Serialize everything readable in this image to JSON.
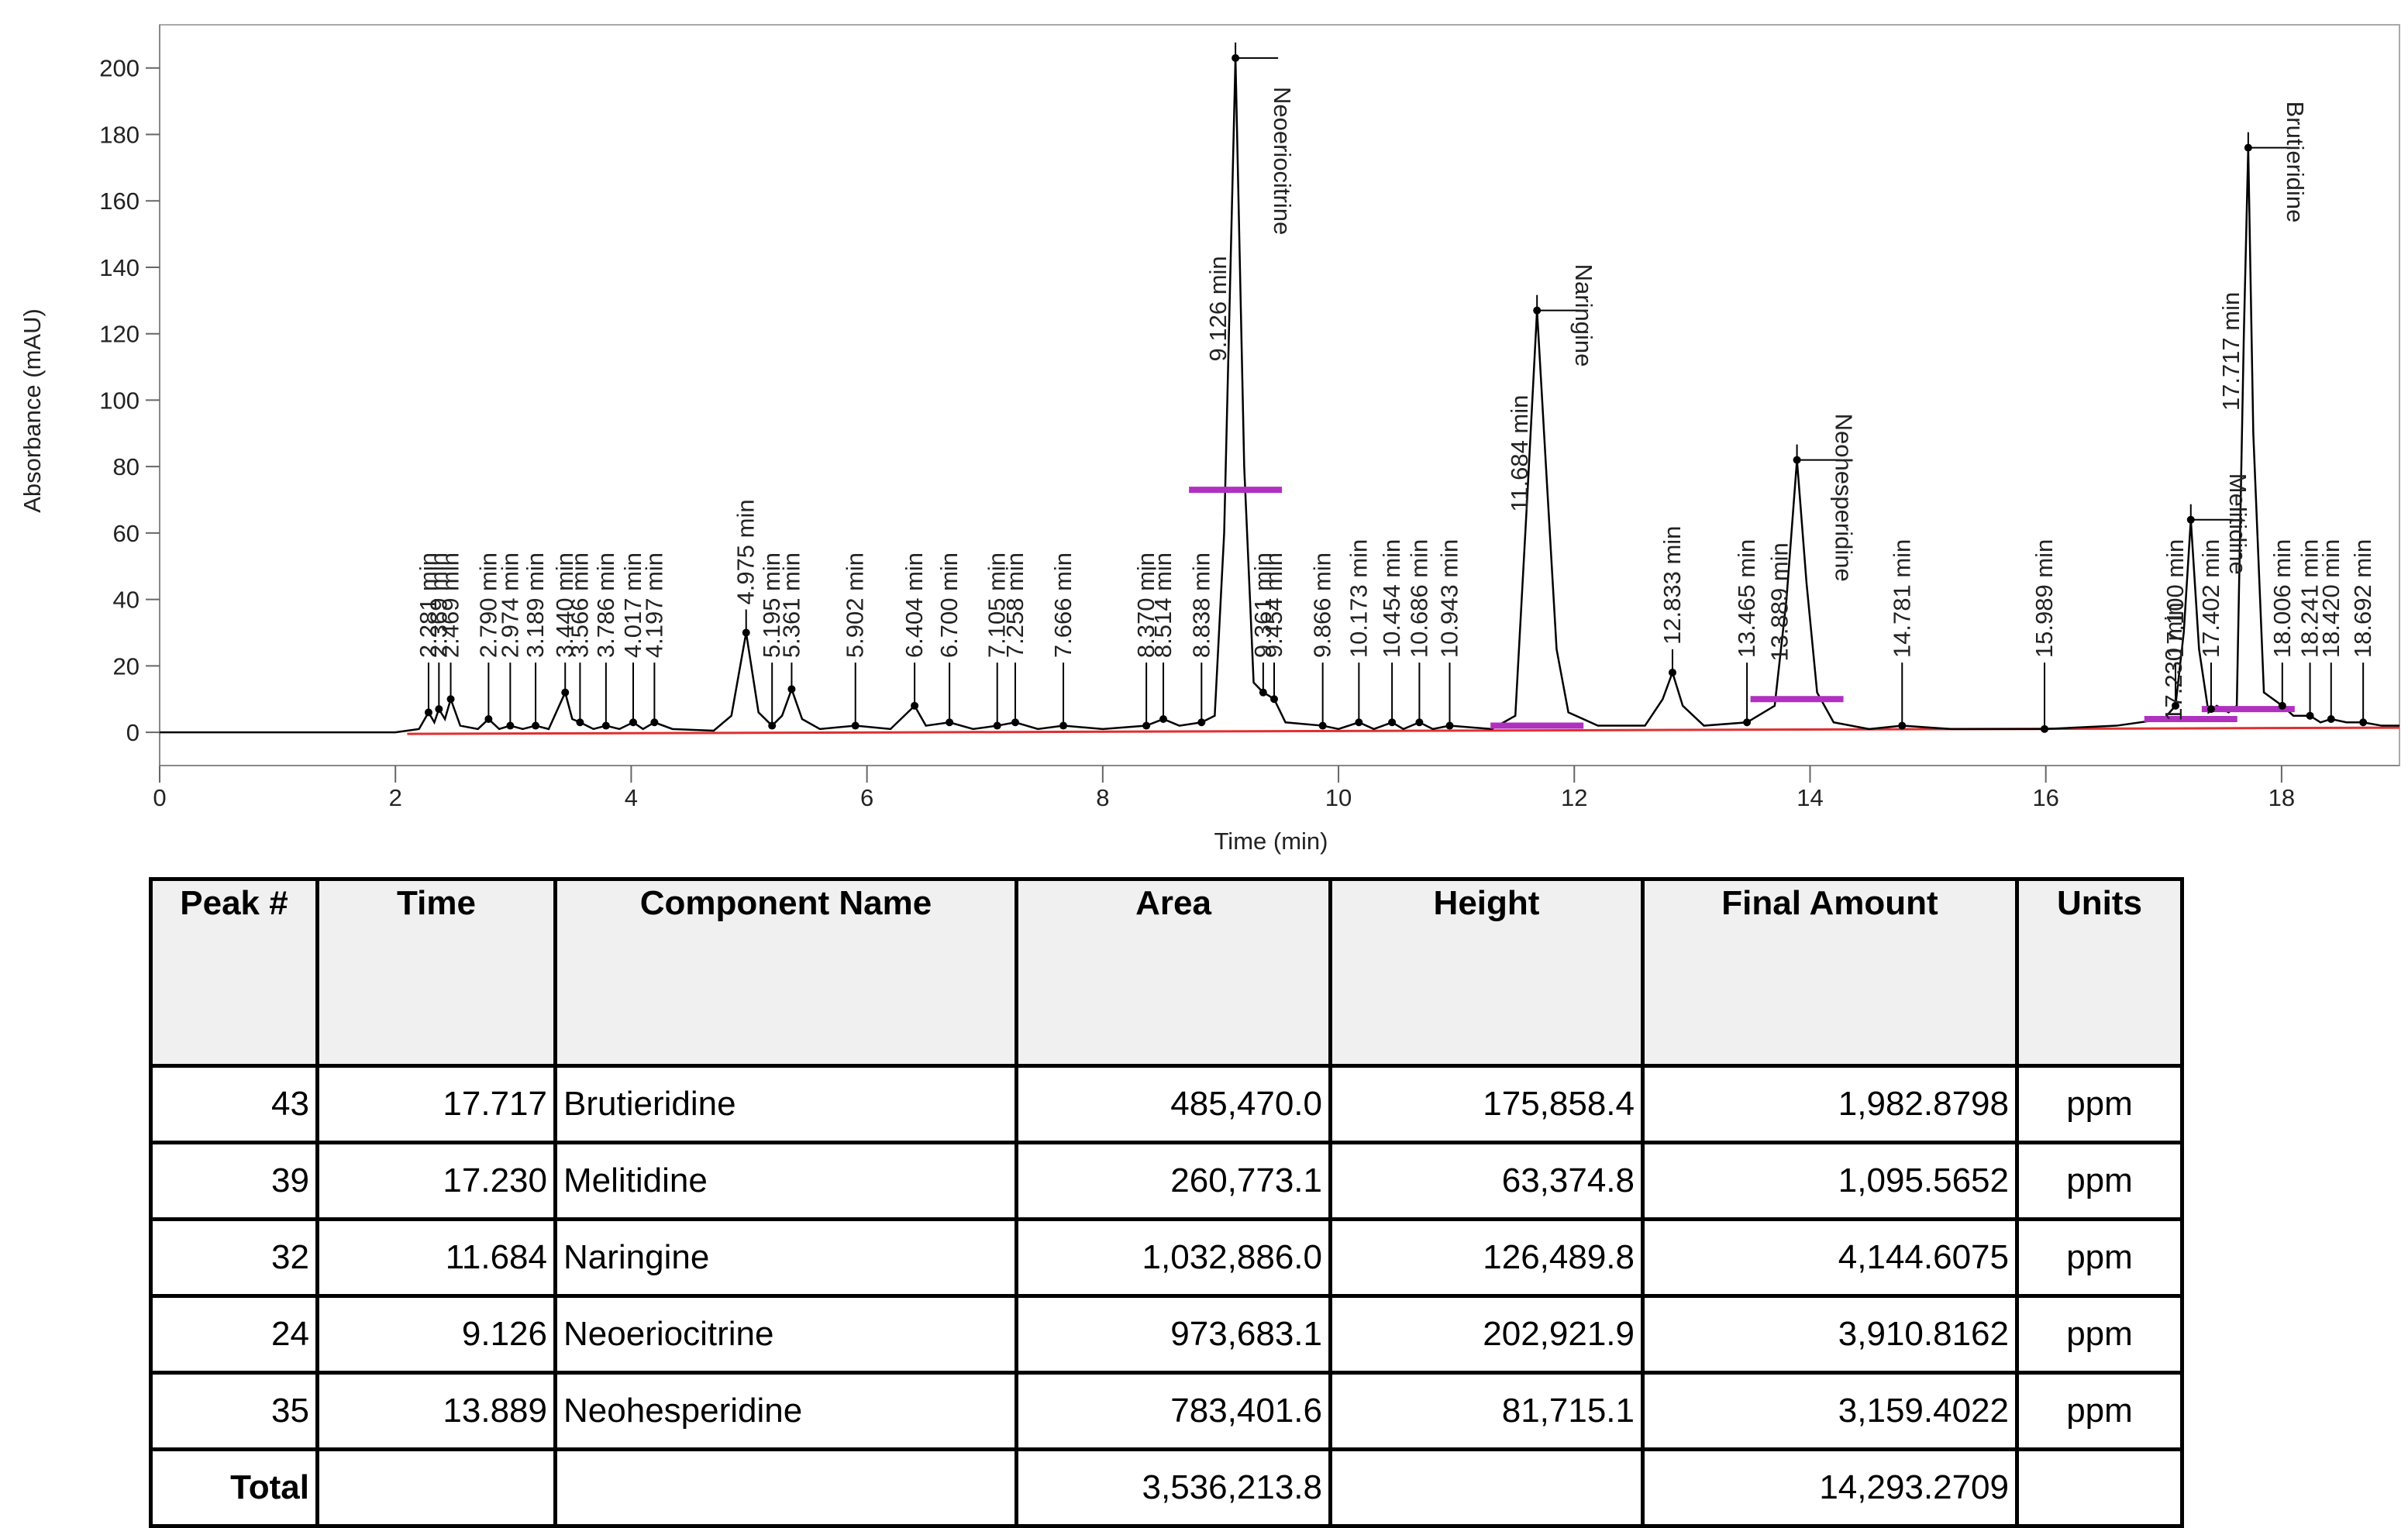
{
  "chart_data": {
    "type": "line",
    "y_label": "Absorbance (mAU)",
    "x_label": "Time (min)",
    "xlim": [
      0,
      19
    ],
    "ylim": [
      -10,
      213
    ],
    "xticks": [
      0,
      2,
      4,
      6,
      8,
      10,
      12,
      14,
      16,
      18
    ],
    "yticks": [
      0,
      20,
      40,
      60,
      80,
      100,
      120,
      140,
      160,
      180,
      200
    ],
    "series": [
      {
        "color": "#000000",
        "x": [
          0,
          2.0,
          2.2,
          2.281,
          2.33,
          2.369,
          2.42,
          2.469,
          2.55,
          2.7,
          2.79,
          2.88,
          2.974,
          3.08,
          3.189,
          3.3,
          3.44,
          3.5,
          3.566,
          3.68,
          3.786,
          3.9,
          4.017,
          4.1,
          4.197,
          4.35,
          4.7,
          4.85,
          4.975,
          5.08,
          5.195,
          5.28,
          5.361,
          5.45,
          5.6,
          5.902,
          6.2,
          6.404,
          6.5,
          6.7,
          6.9,
          7.105,
          7.258,
          7.45,
          7.666,
          8.0,
          8.37,
          8.514,
          8.65,
          8.838,
          8.95,
          9.03,
          9.126,
          9.2,
          9.28,
          9.361,
          9.41,
          9.454,
          9.55,
          9.866,
          10.0,
          10.173,
          10.3,
          10.454,
          10.55,
          10.686,
          10.8,
          10.943,
          11.3,
          11.5,
          11.6,
          11.684,
          11.76,
          11.85,
          11.95,
          12.2,
          12.6,
          12.75,
          12.833,
          12.92,
          13.1,
          13.465,
          13.7,
          13.8,
          13.889,
          13.97,
          14.06,
          14.2,
          14.5,
          14.781,
          15.2,
          15.989,
          16.6,
          17.0,
          17.1,
          17.17,
          17.23,
          17.3,
          17.38,
          17.45,
          17.55,
          17.62,
          17.68,
          17.717,
          17.76,
          17.85,
          18.006,
          18.1,
          18.241,
          18.33,
          18.42,
          18.55,
          18.692,
          18.85,
          19.0
        ],
        "values": [
          0,
          0,
          1,
          6,
          3,
          7,
          4,
          10,
          2,
          1,
          4,
          1,
          2,
          1,
          2,
          1,
          12,
          4,
          3,
          1,
          2,
          1,
          3,
          1,
          3,
          1,
          0.5,
          5,
          30,
          6,
          2,
          5,
          13,
          4,
          1,
          2,
          1,
          8,
          2,
          3,
          1,
          2,
          3,
          1,
          2,
          1,
          2,
          4,
          2,
          3,
          5,
          60,
          203,
          80,
          15,
          12,
          11,
          10,
          3,
          2,
          1,
          3,
          1,
          3,
          1,
          3,
          1,
          2,
          1,
          5,
          70,
          127,
          80,
          25,
          6,
          2,
          2,
          10,
          18,
          8,
          2,
          3,
          8,
          40,
          82,
          45,
          12,
          3,
          1,
          2,
          1,
          1,
          2,
          4,
          8,
          30,
          64,
          25,
          6,
          8,
          6,
          8,
          120,
          176,
          90,
          12,
          8,
          5,
          5,
          3,
          4,
          3,
          3,
          2,
          2
        ]
      }
    ],
    "peaks": [
      {
        "x": 2.281,
        "y": 6,
        "label": "2.281 min"
      },
      {
        "x": 2.369,
        "y": 7,
        "label": "2.369 min"
      },
      {
        "x": 2.469,
        "y": 10,
        "label": "2.469 min"
      },
      {
        "x": 2.79,
        "y": 4,
        "label": "2.790 min"
      },
      {
        "x": 2.974,
        "y": 2,
        "label": "2.974 min"
      },
      {
        "x": 3.189,
        "y": 2,
        "label": "3.189 min"
      },
      {
        "x": 3.44,
        "y": 12,
        "label": "3.440 min"
      },
      {
        "x": 3.566,
        "y": 3,
        "label": "3.566 min"
      },
      {
        "x": 3.786,
        "y": 2,
        "label": "3.786 min"
      },
      {
        "x": 4.017,
        "y": 3,
        "label": "4.017 min"
      },
      {
        "x": 4.197,
        "y": 3,
        "label": "4.197 min"
      },
      {
        "x": 4.975,
        "y": 30,
        "label": "4.975 min"
      },
      {
        "x": 5.195,
        "y": 2,
        "label": "5.195 min"
      },
      {
        "x": 5.361,
        "y": 13,
        "label": "5.361 min"
      },
      {
        "x": 5.902,
        "y": 2,
        "label": "5.902 min"
      },
      {
        "x": 6.404,
        "y": 8,
        "label": "6.404 min"
      },
      {
        "x": 6.7,
        "y": 3,
        "label": "6.700 min"
      },
      {
        "x": 7.105,
        "y": 2,
        "label": "7.105 min"
      },
      {
        "x": 7.258,
        "y": 3,
        "label": "7.258 min"
      },
      {
        "x": 7.666,
        "y": 2,
        "label": "7.666 min"
      },
      {
        "x": 8.37,
        "y": 2,
        "label": "8.370 min"
      },
      {
        "x": 8.514,
        "y": 4,
        "label": "8.514 min"
      },
      {
        "x": 8.838,
        "y": 3,
        "label": "8.838 min"
      },
      {
        "x": 9.126,
        "y": 203,
        "label": "9.126 min"
      },
      {
        "x": 9.361,
        "y": 12,
        "label": "9.361 min"
      },
      {
        "x": 9.454,
        "y": 10,
        "label": "9.454 min"
      },
      {
        "x": 9.866,
        "y": 2,
        "label": "9.866 min"
      },
      {
        "x": 10.173,
        "y": 3,
        "label": "10.173 min"
      },
      {
        "x": 10.454,
        "y": 3,
        "label": "10.454 min"
      },
      {
        "x": 10.686,
        "y": 3,
        "label": "10.686 min"
      },
      {
        "x": 10.943,
        "y": 2,
        "label": "10.943 min"
      },
      {
        "x": 11.684,
        "y": 127,
        "label": "11.684 min"
      },
      {
        "x": 12.833,
        "y": 18,
        "label": "12.833 min"
      },
      {
        "x": 13.465,
        "y": 3,
        "label": "13.465 min"
      },
      {
        "x": 13.889,
        "y": 82,
        "label": "13.889 min"
      },
      {
        "x": 14.781,
        "y": 2,
        "label": "14.781 min"
      },
      {
        "x": 15.989,
        "y": 1,
        "label": "15.989 min"
      },
      {
        "x": 17.1,
        "y": 8,
        "label": "17.100 min"
      },
      {
        "x": 17.23,
        "y": 64,
        "label": "17.230 min"
      },
      {
        "x": 17.402,
        "y": 7,
        "label": "17.402 min"
      },
      {
        "x": 17.717,
        "y": 176,
        "label": "17.717 min"
      },
      {
        "x": 18.006,
        "y": 8,
        "label": "18.006 min"
      },
      {
        "x": 18.241,
        "y": 5,
        "label": "18.241 min"
      },
      {
        "x": 18.42,
        "y": 4,
        "label": "18.420 min"
      },
      {
        "x": 18.692,
        "y": 3,
        "label": "18.692 min"
      }
    ],
    "components": [
      {
        "name": "Neoeriocitrine",
        "x": 9.126,
        "y": 203
      },
      {
        "name": "Naringine",
        "x": 11.684,
        "y": 127
      },
      {
        "name": "Neohesperidine",
        "x": 13.889,
        "y": 82
      },
      {
        "name": "Melitidine",
        "x": 17.23,
        "y": 64
      },
      {
        "name": "Brutieridine",
        "x": 17.717,
        "y": 176
      }
    ],
    "integration_color": "#b030c0",
    "integration_marks": [
      {
        "x": 9.126,
        "y": 73
      },
      {
        "x": 11.684,
        "y": 2
      },
      {
        "x": 13.889,
        "y": 10
      },
      {
        "x": 17.23,
        "y": 4
      },
      {
        "x": 17.717,
        "y": 7
      }
    ]
  },
  "table": {
    "headers": [
      "Peak #",
      "Time",
      "Component Name",
      "Area",
      "Height",
      "Final Amount",
      "Units"
    ],
    "rows": [
      [
        "43",
        "17.717",
        "Brutieridine",
        "485,470.0",
        "175,858.4",
        "1,982.8798",
        "ppm"
      ],
      [
        "39",
        "17.230",
        "Melitidine",
        "260,773.1",
        "63,374.8",
        "1,095.5652",
        "ppm"
      ],
      [
        "32",
        "11.684",
        "Naringine",
        "1,032,886.0",
        "126,489.8",
        "4,144.6075",
        "ppm"
      ],
      [
        "24",
        "9.126",
        "Neoeriocitrine",
        "973,683.1",
        "202,921.9",
        "3,910.8162",
        "ppm"
      ],
      [
        "35",
        "13.889",
        "Neohesperidine",
        "783,401.6",
        "81,715.1",
        "3,159.4022",
        "ppm"
      ]
    ],
    "total": [
      "Total",
      "3,536,213.8",
      "14,293.2709"
    ]
  }
}
